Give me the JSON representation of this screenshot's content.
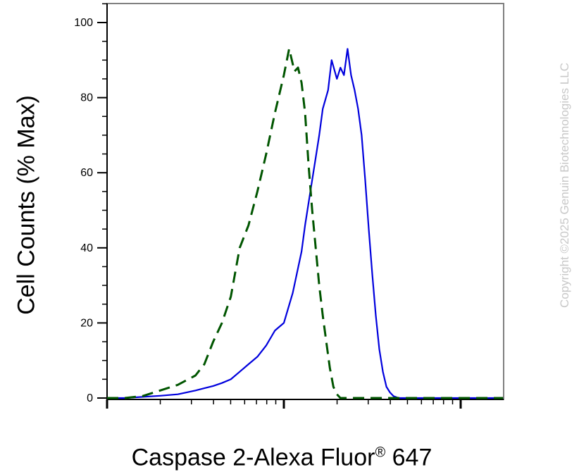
{
  "chart_data": {
    "type": "line",
    "title": "",
    "xlabel_main": "Caspase 2-Alexa Fluor",
    "xlabel_reg": "®",
    "xlabel_tail": " 647",
    "ylabel": "Cell Counts (% Max)",
    "ylim": [
      0,
      100
    ],
    "yticks": [
      0,
      20,
      40,
      60,
      80,
      100
    ],
    "ytick_labels": [
      "0",
      "20",
      "40",
      "60",
      "80",
      "100"
    ],
    "x_scale": "log",
    "x_decades": [
      0,
      1,
      2
    ],
    "grid": false,
    "series": [
      {
        "color": "#0000dd",
        "style": "solid",
        "x": [
          0.0,
          0.1,
          0.2,
          0.3,
          0.4,
          0.5,
          0.55,
          0.6,
          0.65,
          0.7,
          0.75,
          0.8,
          0.85,
          0.9,
          0.95,
          1.0,
          1.05,
          1.1,
          1.12,
          1.15,
          1.18,
          1.2,
          1.22,
          1.25,
          1.27,
          1.3,
          1.32,
          1.34,
          1.36,
          1.38,
          1.4,
          1.42,
          1.44,
          1.46,
          1.48,
          1.5,
          1.52,
          1.54,
          1.56,
          1.58,
          1.6,
          1.62,
          1.65,
          1.68,
          1.7,
          1.72,
          1.75,
          1.8,
          1.85,
          2.0,
          2.24
        ],
        "y": [
          0,
          0,
          0.3,
          0.6,
          1,
          2,
          2.6,
          3.2,
          4,
          5,
          7,
          9,
          11,
          14,
          18,
          20,
          28,
          39,
          46,
          55,
          64,
          70,
          77,
          82,
          90,
          85,
          88,
          86,
          93,
          86,
          82,
          77,
          70,
          58,
          45,
          33,
          22,
          13,
          7,
          3,
          1.5,
          0.5,
          0,
          0,
          0,
          0,
          0,
          0,
          0,
          0,
          0
        ]
      },
      {
        "color": "#005500",
        "style": "dashed",
        "x": [
          0.0,
          0.1,
          0.2,
          0.3,
          0.4,
          0.5,
          0.55,
          0.6,
          0.65,
          0.7,
          0.75,
          0.8,
          0.85,
          0.9,
          0.95,
          1.0,
          1.03,
          1.06,
          1.08,
          1.1,
          1.12,
          1.14,
          1.16,
          1.18,
          1.2,
          1.22,
          1.24,
          1.26,
          1.28,
          1.3,
          1.32,
          1.34,
          1.36,
          1.38,
          1.4,
          1.42,
          1.44,
          1.46,
          1.48,
          1.5,
          1.55,
          1.6,
          1.7,
          1.8,
          2.0,
          2.24
        ],
        "y": [
          0,
          0,
          0.5,
          2,
          3.5,
          6,
          9,
          15,
          20,
          27,
          40,
          46,
          55,
          65,
          76,
          86,
          93,
          87,
          88,
          84,
          76,
          62,
          50,
          40,
          30,
          22,
          15,
          8,
          3,
          1,
          0,
          0,
          0,
          0,
          0,
          0,
          0,
          0,
          0,
          0,
          0,
          0,
          0,
          0,
          0,
          0
        ]
      }
    ]
  },
  "watermark": "Copyright ©2025 Genuin Biotechnologies LLC"
}
